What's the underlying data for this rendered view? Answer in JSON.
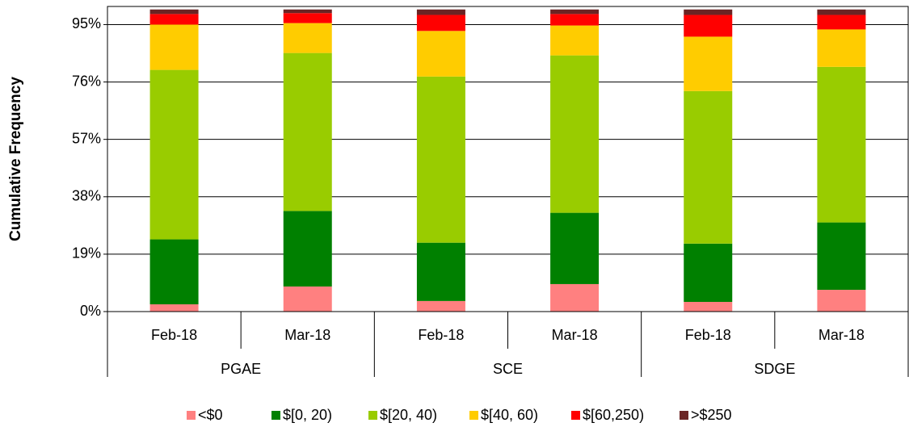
{
  "chart_data": {
    "type": "stacked_bar",
    "y_label": "Cumulative Frequency",
    "categories": [
      "Feb-18",
      "Mar-18",
      "Feb-18",
      "Mar-18",
      "Feb-18",
      "Mar-18"
    ],
    "groups": [
      "PGAE",
      "SCE",
      "SDGE"
    ],
    "series": [
      {
        "name": "<$0",
        "color": "#ff8080",
        "values": [
          2.4,
          8.3,
          3.5,
          9.1,
          3.2,
          7.2
        ]
      },
      {
        "name": "$[0, 20)",
        "color": "#008000",
        "values": [
          21.5,
          25.0,
          19.3,
          23.6,
          19.3,
          22.3
        ]
      },
      {
        "name": "$[20, 40)",
        "color": "#99cc00",
        "values": [
          56.1,
          52.3,
          55.0,
          52.1,
          50.5,
          51.5
        ]
      },
      {
        "name": "$[40, 60)",
        "color": "#ffcc00",
        "values": [
          15.0,
          9.9,
          15.1,
          9.9,
          18.0,
          12.4
        ]
      },
      {
        "name": "$[60,250)",
        "color": "#ff0000",
        "values": [
          3.5,
          3.3,
          5.3,
          3.8,
          7.2,
          4.8
        ]
      },
      {
        "name": ">$250",
        "color": "#6b2424",
        "values": [
          1.5,
          1.2,
          1.8,
          1.5,
          1.8,
          1.8
        ]
      }
    ],
    "ylim": [
      0,
      101
    ],
    "yticks": [
      {
        "value": 0,
        "label": "0%"
      },
      {
        "value": 19,
        "label": "19%"
      },
      {
        "value": 38,
        "label": "38%"
      },
      {
        "value": 57,
        "label": "57%"
      },
      {
        "value": 76,
        "label": "76%"
      },
      {
        "value": 95,
        "label": "95%"
      }
    ],
    "grid": true,
    "legend": "bottom"
  }
}
